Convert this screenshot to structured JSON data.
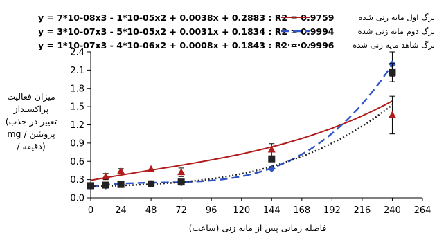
{
  "chart_data": {
    "type": "line",
    "xlabel": "فاصله زمانی پس از مایه زنی (ساعت)",
    "ylabel": [
      "میزان فعالیت",
      "پراکسیداز",
      "(تغییر در جذب",
      "mg / پروتئین",
      "/ دقیقه)"
    ],
    "xlim": [
      0,
      264
    ],
    "ylim": [
      0.0,
      2.4
    ],
    "x_ticks": [
      "0",
      "24",
      "48",
      "72",
      "96",
      "120",
      "144",
      "168",
      "192",
      "216",
      "240",
      "264"
    ],
    "y_ticks": [
      "0.0",
      "0.3",
      "0.6",
      "0.9",
      "1.2",
      "1.5",
      "1.8",
      "2.1",
      "2.4"
    ],
    "grid": false,
    "legend_position": "top",
    "series": [
      {
        "name": "برگ اول مایه زنی شده",
        "equation": "y = 7*10-08x3 - 1*10-05x2 + 0.0038x + 0.2883 : R2 = 0.9759",
        "color": "#b01c1c",
        "marker": "triangle",
        "line_style": "solid",
        "x": [
          0,
          12,
          24,
          48,
          72,
          144,
          240
        ],
        "y": [
          0.2,
          0.35,
          0.44,
          0.47,
          0.42,
          0.79,
          1.36
        ],
        "error": [
          0.02,
          0.05,
          0.04,
          0.03,
          0.07,
          0.1,
          0.31
        ],
        "trend_coef": [
          0.2883,
          0.0038,
          -1e-05,
          7e-08
        ]
      },
      {
        "name": "برگ دوم مایه زنی شده",
        "equation": "y = 3*10-07x3 - 5*10-05x2 + 0.0031x + 0.1834 : R2 = 0.9994",
        "color": "#2e55c8",
        "marker": "diamond",
        "line_style": "dashed",
        "x": [
          0,
          12,
          24,
          48,
          72,
          144,
          240
        ],
        "y": [
          0.19,
          0.2,
          0.22,
          0.23,
          0.25,
          0.48,
          2.2
        ],
        "error": [
          0.02,
          0.02,
          0.02,
          0.02,
          0.02,
          0.03,
          0.2
        ],
        "trend_coef": [
          0.1834,
          0.0031,
          -5e-05,
          3e-07
        ]
      },
      {
        "name": "برگ شاهد مایه زنی شده",
        "equation": "y = 1*10-07x3 - 4*10-06x2 + 0.0008x + 0.1843 : R2 = 0.9996",
        "color": "#222222",
        "marker": "square",
        "line_style": "dotted",
        "x": [
          0,
          12,
          24,
          48,
          72,
          144,
          240
        ],
        "y": [
          0.2,
          0.21,
          0.22,
          0.23,
          0.26,
          0.64,
          2.06
        ],
        "error": [
          0.02,
          0.02,
          0.02,
          0.02,
          0.02,
          0.04,
          0.15
        ],
        "trend_coef": [
          0.1843,
          0.0008,
          -4e-06,
          1e-07
        ]
      }
    ]
  }
}
